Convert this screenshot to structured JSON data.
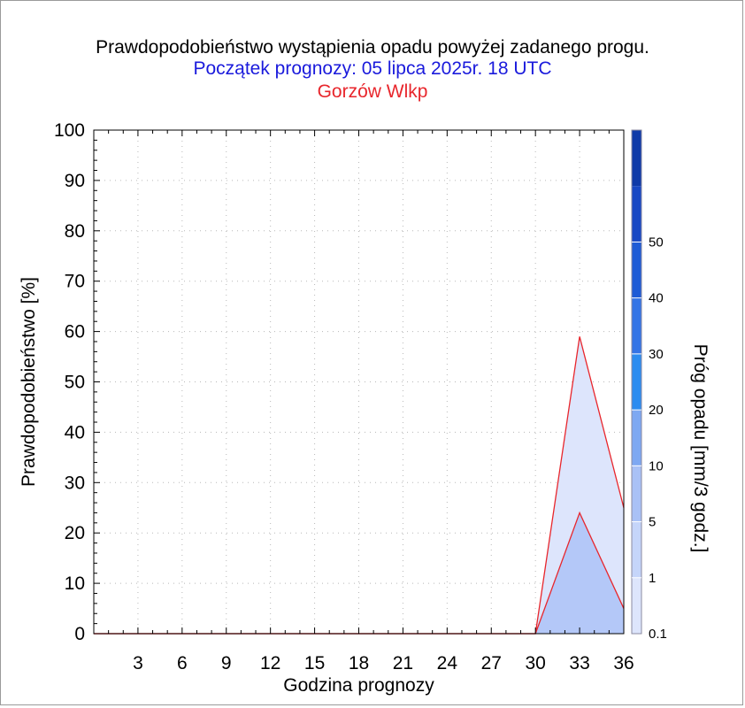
{
  "titles": {
    "line1": "Prawdopodobieństwo wystąpienia opadu powyżej zadanego progu.",
    "line2": "Początek prognozy: 05 lipca 2025r. 18 UTC",
    "line3": "Gorzów Wlkp"
  },
  "chart_data": {
    "type": "area",
    "xlabel": "Godzina prognozy",
    "ylabel": "Prawdopodobieństwo [%]",
    "xlim": [
      0,
      36
    ],
    "ylim": [
      0,
      100
    ],
    "x_ticks": [
      3,
      6,
      9,
      12,
      15,
      18,
      21,
      24,
      27,
      30,
      33,
      36
    ],
    "y_ticks": [
      0,
      10,
      20,
      30,
      40,
      50,
      60,
      70,
      80,
      90,
      100
    ],
    "grid": true,
    "x": [
      0,
      3,
      6,
      9,
      12,
      15,
      18,
      21,
      24,
      27,
      30,
      33,
      36
    ],
    "series": [
      {
        "threshold": "0.1",
        "color": "#dde5fc",
        "values": [
          0,
          0,
          0,
          0,
          0,
          0,
          0,
          0,
          0,
          0,
          0,
          59,
          25
        ]
      },
      {
        "threshold": "1",
        "color": "#b4c8f8",
        "values": [
          0,
          0,
          0,
          0,
          0,
          0,
          0,
          0,
          0,
          0,
          0,
          24,
          5
        ]
      }
    ],
    "line_color": "#e8262c",
    "colorbar": {
      "title": "Próg opadu [mm/3 godz.]",
      "labels": [
        "0.1",
        "1",
        "5",
        "10",
        "20",
        "30",
        "40",
        "50"
      ],
      "colors": [
        "#dde5fc",
        "#c5d5fa",
        "#a9c1f6",
        "#7ea8f2",
        "#2c8cf0",
        "#3474e6",
        "#1e5bd6",
        "#1848c4",
        "#0f3aa8"
      ]
    }
  }
}
